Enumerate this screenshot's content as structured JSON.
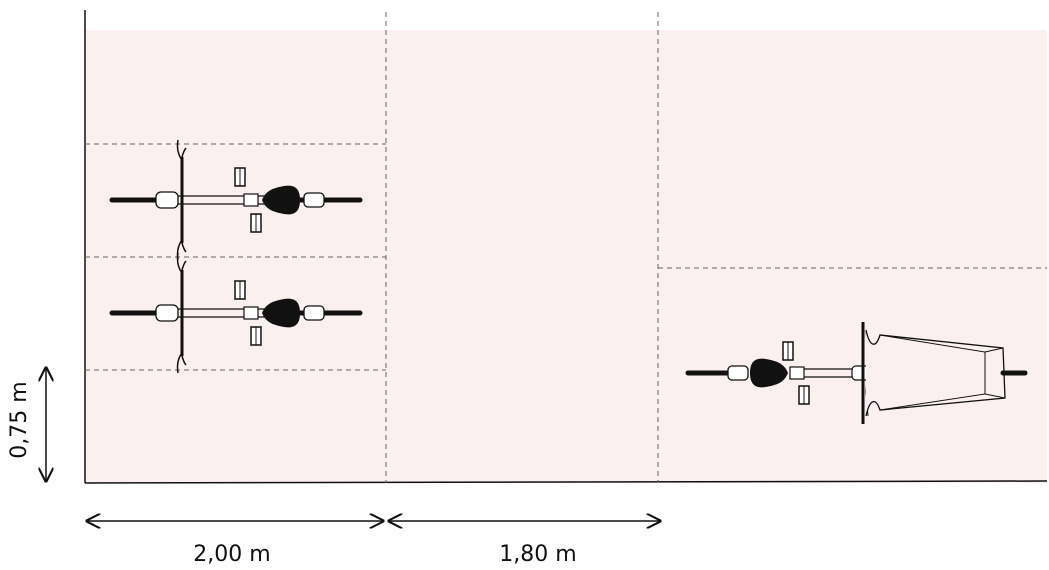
{
  "dimensions": {
    "bottom_left": "2,00 m",
    "bottom_right": "1,80 m",
    "left_vertical": "0,75 m"
  },
  "colors": {
    "area_fill": "#faf0ef",
    "line": "#111111",
    "dashed": "#6d6d6d"
  },
  "icons": [
    "bicycle-icon",
    "cargo-bicycle-icon"
  ]
}
